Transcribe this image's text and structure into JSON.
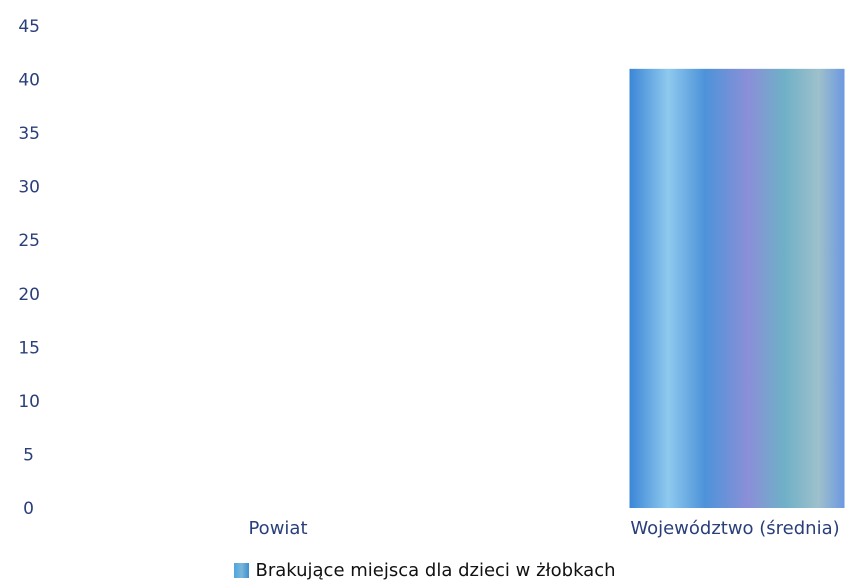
{
  "chart_data": {
    "type": "bar",
    "categories": [
      "Powiat",
      "Województwo (średnia)"
    ],
    "series": [
      {
        "name": "Brakujące miejsca dla dzieci w żłobkach",
        "values": [
          0,
          41
        ]
      }
    ],
    "ylim": [
      0,
      45
    ],
    "yticks": [
      0,
      5,
      10,
      15,
      20,
      25,
      30,
      35,
      40,
      45
    ],
    "grid": false,
    "legend_position": "bottom-center",
    "colors": {
      "bar": "#3f95d6",
      "tick_text": "#2a3f7a",
      "legend_text": "#111111"
    }
  }
}
